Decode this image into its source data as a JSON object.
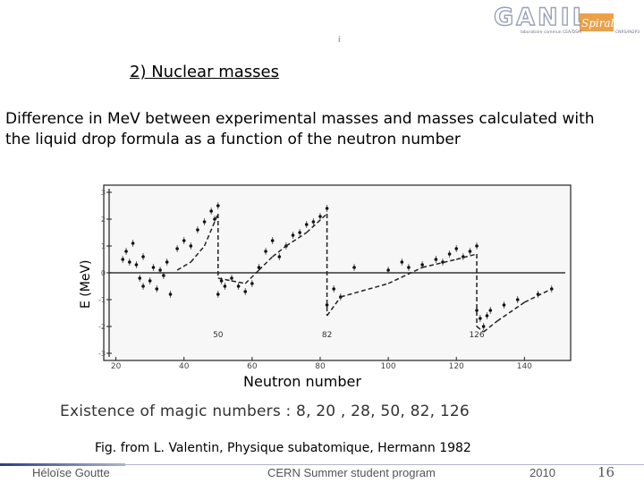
{
  "header": {
    "logo_text": "GANIL",
    "logo_sub": "Spiral2",
    "logo_tagline": "laboratoire commun CEA/DSM",
    "logo_tagline2": "CNRS/IN2P3",
    "slide_marker": "i"
  },
  "slide": {
    "title": "2) Nuclear masses",
    "description_line1": "Difference in MeV between experimental masses and masses calculated with",
    "description_line2": "the liquid drop formula as a function of the neutron number",
    "magic_numbers": "Existence of magic numbers : 8, 20 , 28, 50, 82, 126",
    "reference": "Fig. from L. Valentin, Physique subatomique, Hermann 1982"
  },
  "footer": {
    "author": "Héloïse Goutte",
    "event": "CERN Summer student program",
    "year": "2010",
    "page": "16"
  },
  "colors": {
    "footer_line": "#b0b4c8",
    "footer_accent": "#2b3a8c",
    "logo_gray": "#9aa0b8",
    "logo_orange": "#e8902a"
  },
  "chart_data": {
    "type": "scatter",
    "title": "",
    "xlabel": "Neutron number",
    "ylabel": "E (MeV)",
    "xlim": [
      18,
      152
    ],
    "ylim": [
      -3,
      3
    ],
    "x_ticks": [
      20,
      40,
      60,
      80,
      100,
      120,
      140
    ],
    "y_ticks": [
      3,
      2,
      1,
      0,
      -1,
      -2,
      -3
    ],
    "y_tick_labels": [
      "3",
      "2",
      "1",
      "0",
      "-1",
      "-2",
      "-3"
    ],
    "magic_labels": [
      {
        "text": "50",
        "x": 50,
        "y": -2.4
      },
      {
        "text": "82",
        "x": 82,
        "y": -2.4
      },
      {
        "text": "126",
        "x": 126,
        "y": -2.4
      }
    ],
    "series": [
      {
        "style": "points",
        "points": [
          [
            22,
            0.5
          ],
          [
            23,
            0.8
          ],
          [
            24,
            0.4
          ],
          [
            25,
            1.1
          ],
          [
            26,
            0.3
          ],
          [
            27,
            -0.2
          ],
          [
            28,
            0.6
          ],
          [
            28,
            -0.5
          ],
          [
            30,
            -0.3
          ],
          [
            31,
            0.2
          ],
          [
            32,
            -0.6
          ],
          [
            33,
            0.1
          ],
          [
            34,
            -0.1
          ],
          [
            35,
            0.4
          ],
          [
            36,
            -0.8
          ],
          [
            38,
            0.9
          ],
          [
            40,
            1.2
          ],
          [
            42,
            1.0
          ],
          [
            44,
            1.6
          ],
          [
            46,
            1.9
          ],
          [
            48,
            2.3
          ],
          [
            49,
            2.0
          ],
          [
            50,
            2.5
          ],
          [
            50,
            -0.8
          ],
          [
            51,
            -0.3
          ],
          [
            52,
            -0.5
          ],
          [
            54,
            -0.2
          ],
          [
            56,
            -0.5
          ],
          [
            58,
            -0.7
          ],
          [
            60,
            -0.4
          ],
          [
            62,
            0.2
          ],
          [
            64,
            0.8
          ],
          [
            66,
            1.2
          ],
          [
            68,
            0.6
          ],
          [
            70,
            1.0
          ],
          [
            72,
            1.4
          ],
          [
            74,
            1.5
          ],
          [
            76,
            1.8
          ],
          [
            78,
            1.9
          ],
          [
            80,
            2.1
          ],
          [
            82,
            2.4
          ],
          [
            82,
            -1.2
          ],
          [
            84,
            -0.6
          ],
          [
            86,
            -0.9
          ],
          [
            90,
            0.2
          ],
          [
            100,
            0.1
          ],
          [
            104,
            0.4
          ],
          [
            106,
            0.2
          ],
          [
            110,
            0.3
          ],
          [
            114,
            0.5
          ],
          [
            116,
            0.4
          ],
          [
            118,
            0.7
          ],
          [
            120,
            0.9
          ],
          [
            122,
            0.6
          ],
          [
            124,
            0.8
          ],
          [
            126,
            1.0
          ],
          [
            126,
            -1.4
          ],
          [
            127,
            -1.7
          ],
          [
            128,
            -2.0
          ],
          [
            129,
            -1.6
          ],
          [
            130,
            -1.4
          ],
          [
            134,
            -1.2
          ],
          [
            138,
            -1.0
          ],
          [
            144,
            -0.8
          ],
          [
            148,
            -0.6
          ]
        ]
      },
      {
        "style": "dashed",
        "points": [
          [
            38,
            0.1
          ],
          [
            42,
            0.4
          ],
          [
            46,
            1.0
          ],
          [
            50,
            2.2
          ],
          [
            50,
            -0.2
          ],
          [
            54,
            -0.3
          ],
          [
            58,
            -0.4
          ],
          [
            62,
            0.1
          ],
          [
            66,
            0.6
          ],
          [
            70,
            1.0
          ],
          [
            76,
            1.5
          ],
          [
            82,
            2.2
          ],
          [
            82,
            -1.6
          ],
          [
            86,
            -0.9
          ],
          [
            100,
            -0.4
          ],
          [
            110,
            0.2
          ],
          [
            120,
            0.5
          ],
          [
            126,
            0.7
          ],
          [
            126,
            -2.0
          ],
          [
            128,
            -2.2
          ],
          [
            132,
            -1.8
          ],
          [
            140,
            -1.1
          ],
          [
            148,
            -0.6
          ]
        ]
      }
    ],
    "grid": false,
    "legend": "none"
  }
}
